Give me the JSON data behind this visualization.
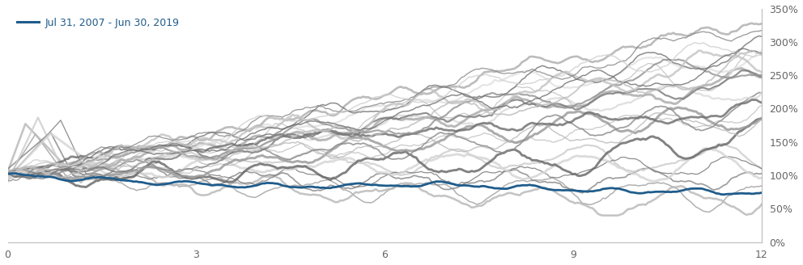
{
  "legend_label": "Jul 31, 2007 - Jun 30, 2019",
  "legend_color": "#1f5c8b",
  "xlim": [
    0,
    12
  ],
  "ylim": [
    0.0,
    3.5
  ],
  "xticks": [
    0,
    3,
    6,
    9,
    12
  ],
  "yticks": [
    0.0,
    0.5,
    1.0,
    1.5,
    2.0,
    2.5,
    3.0,
    3.5
  ],
  "ytick_labels": [
    "0%",
    "50%",
    "100%",
    "150%",
    "200%",
    "250%",
    "300%",
    "350%"
  ],
  "background_color": "#ffffff",
  "blue_line_color": "#1f5c8b",
  "gray_colors": [
    "#a0a0a0",
    "#b8b8b8",
    "#888888",
    "#cccccc",
    "#777777",
    "#d5d5d5",
    "#666666",
    "#c0c0c0",
    "#999999",
    "#bbbbbb",
    "#8a8a8a",
    "#dadada",
    "#aaaaaa",
    "#6e6e6e",
    "#bfbfbf",
    "#7a7a7a",
    "#e0e0e0",
    "#929292",
    "#adadad",
    "#747474",
    "#c4c4c4",
    "#848484",
    "#d0d0d0",
    "#707070",
    "#bebebe"
  ],
  "n_gray_lines": 25,
  "n_points": 300,
  "seed": 7
}
